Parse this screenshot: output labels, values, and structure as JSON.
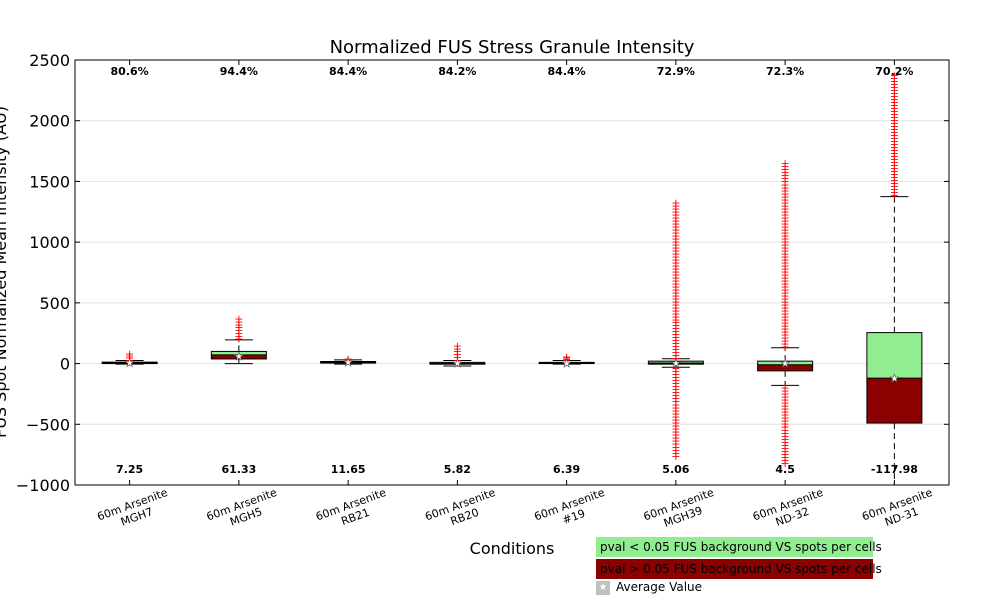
{
  "chart_data": {
    "type": "box",
    "title": "Normalized FUS Stress Granule Intensity",
    "xlabel": "Conditions",
    "ylabel": "FUS Spot Normalized Mean Intensity (AU)",
    "ylim": [
      -1000,
      2500
    ],
    "yticks": [
      -1000,
      -500,
      0,
      500,
      1000,
      1500,
      2000,
      2500
    ],
    "ytick_labels": [
      "−1000",
      "−500",
      "0",
      "500",
      "1000",
      "1500",
      "2000",
      "2500"
    ],
    "grid": "horizontal",
    "categories": [
      "60m Arsenite\nMGH7",
      "60m Arsenite\nMGH5",
      "60m Arsenite\nRB21",
      "60m Arsenite\nRB20",
      "60m Arsenite\n#19",
      "60m Arsenite\nMGH39",
      "60m Arsenite\nND-32",
      "60m Arsenite\nND-31"
    ],
    "percent_labels": [
      "80.6%",
      "94.4%",
      "84.4%",
      "84.2%",
      "84.4%",
      "72.9%",
      "72.3%",
      "70.2%"
    ],
    "mean_labels": [
      "7.25",
      "61.33",
      "11.65",
      "5.82",
      "6.39",
      "5.06",
      "4.5",
      "-117.98"
    ],
    "means": [
      7.25,
      61.33,
      11.65,
      5.82,
      6.39,
      5.06,
      4.5,
      -117.98
    ],
    "boxes": [
      {
        "whislo": -5,
        "q1": 0,
        "med": 6,
        "q3": 12,
        "whishi": 25,
        "fliers_high": [
          30,
          85
        ],
        "fliers_low": []
      },
      {
        "whislo": 0,
        "q1": 38,
        "med": 72,
        "q3": 100,
        "whishi": 195,
        "fliers_high": [
          205,
          370
        ],
        "fliers_low": []
      },
      {
        "whislo": -5,
        "q1": 4,
        "med": 10,
        "q3": 17,
        "whishi": 30,
        "fliers_high": [
          32,
          40
        ],
        "fliers_low": []
      },
      {
        "whislo": -20,
        "q1": -5,
        "med": 2,
        "q3": 10,
        "whishi": 25,
        "fliers_high": [
          30,
          150
        ],
        "fliers_low": []
      },
      {
        "whislo": -5,
        "q1": 0,
        "med": 5,
        "q3": 10,
        "whishi": 25,
        "fliers_high": [
          28,
          60
        ],
        "fliers_low": []
      },
      {
        "whislo": -30,
        "q1": -5,
        "med": 5,
        "q3": 20,
        "whishi": 40,
        "fliers_high": [
          45,
          1325
        ],
        "fliers_low": [
          -35,
          -760
        ]
      },
      {
        "whislo": -180,
        "q1": -60,
        "med": -10,
        "q3": 20,
        "whishi": 130,
        "fliers_high": [
          140,
          1650
        ],
        "fliers_low": [
          -195,
          -820
        ]
      },
      {
        "whislo": -1000,
        "q1": -490,
        "med": -120,
        "q3": 255,
        "whishi": 1375,
        "fliers_high": [
          1390,
          2375
        ],
        "fliers_low": []
      }
    ],
    "box_fill_upper": "#90ee90",
    "box_fill_lower": "#8b0000",
    "flier_color": "#ff0000",
    "mean_marker": "star"
  },
  "legend": {
    "items": [
      {
        "label": "pval < 0.05 FUS background VS spots per cells",
        "color": "#90ee90"
      },
      {
        "label": "pval > 0.05 FUS background VS spots per cells",
        "color": "#8b0000"
      }
    ],
    "average_label": "Average Value",
    "average_symbol": "★"
  }
}
